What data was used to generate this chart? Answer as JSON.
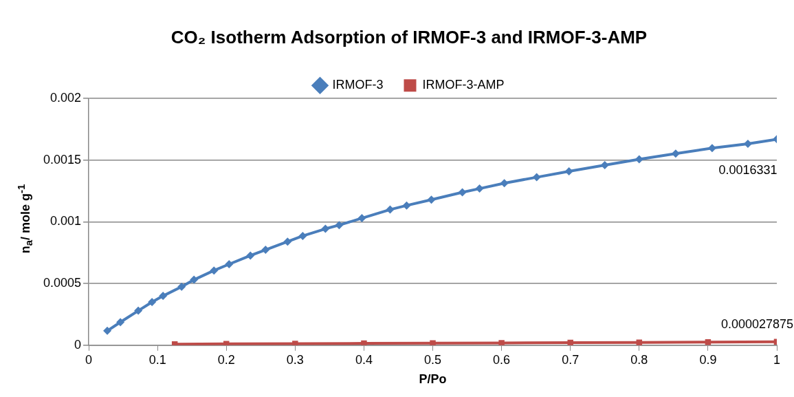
{
  "chart_data": {
    "type": "line",
    "title": "CO₂ Isotherm Adsorption of IRMOF-3 and IRMOF-3-AMP",
    "xlabel": "P/Po",
    "ylabel": "n$_{a}$/ mole g$^{-1}$",
    "xlim": [
      0,
      1
    ],
    "xticks": [
      0,
      0.1,
      0.2,
      0.3,
      0.4,
      0.5,
      0.6,
      0.7,
      0.8,
      0.9,
      1
    ],
    "ylim": [
      0,
      0.002
    ],
    "yticks": [
      0,
      0.0005,
      0.001,
      0.0015,
      0.002
    ],
    "grid": "y",
    "legend": "top",
    "series": [
      {
        "name": "IRMOF-3",
        "color": "#4a7ebb",
        "marker": "diamond",
        "x": [
          0.027,
          0.046,
          0.072,
          0.092,
          0.108,
          0.135,
          0.153,
          0.182,
          0.204,
          0.235,
          0.257,
          0.289,
          0.311,
          0.344,
          0.364,
          0.397,
          0.438,
          0.462,
          0.498,
          0.543,
          0.568,
          0.604,
          0.651,
          0.698,
          0.75,
          0.8,
          0.853,
          0.906,
          0.958,
          1.0
        ],
        "values": [
          0.000117,
          0.000187,
          0.00028,
          0.00035,
          0.0004,
          0.000474,
          0.000531,
          0.000606,
          0.000657,
          0.000727,
          0.000774,
          0.00084,
          0.000886,
          0.000944,
          0.000974,
          0.00103,
          0.0011,
          0.001133,
          0.00118,
          0.00124,
          0.00127,
          0.001314,
          0.001362,
          0.00141,
          0.00146,
          0.001508,
          0.001554,
          0.001598,
          0.0016331,
          0.00167
        ]
      },
      {
        "name": "IRMOF-3-AMP",
        "color": "#be4b48",
        "marker": "square",
        "x": [
          0.125,
          0.2,
          0.3,
          0.4,
          0.5,
          0.6,
          0.7,
          0.8,
          0.9,
          1.0
        ],
        "values": [
          9e-06,
          1.1e-05,
          1.3e-05,
          1.5e-05,
          1.7e-05,
          1.9e-05,
          2.1e-05,
          2.3e-05,
          2.5e-05,
          2.7875e-05
        ]
      }
    ],
    "annotations": [
      {
        "text": "0.0016331",
        "x": 0.958,
        "y": 0.0016331
      },
      {
        "text": "0.000027875",
        "x": 1.0,
        "y": 2.7875e-05
      }
    ]
  }
}
